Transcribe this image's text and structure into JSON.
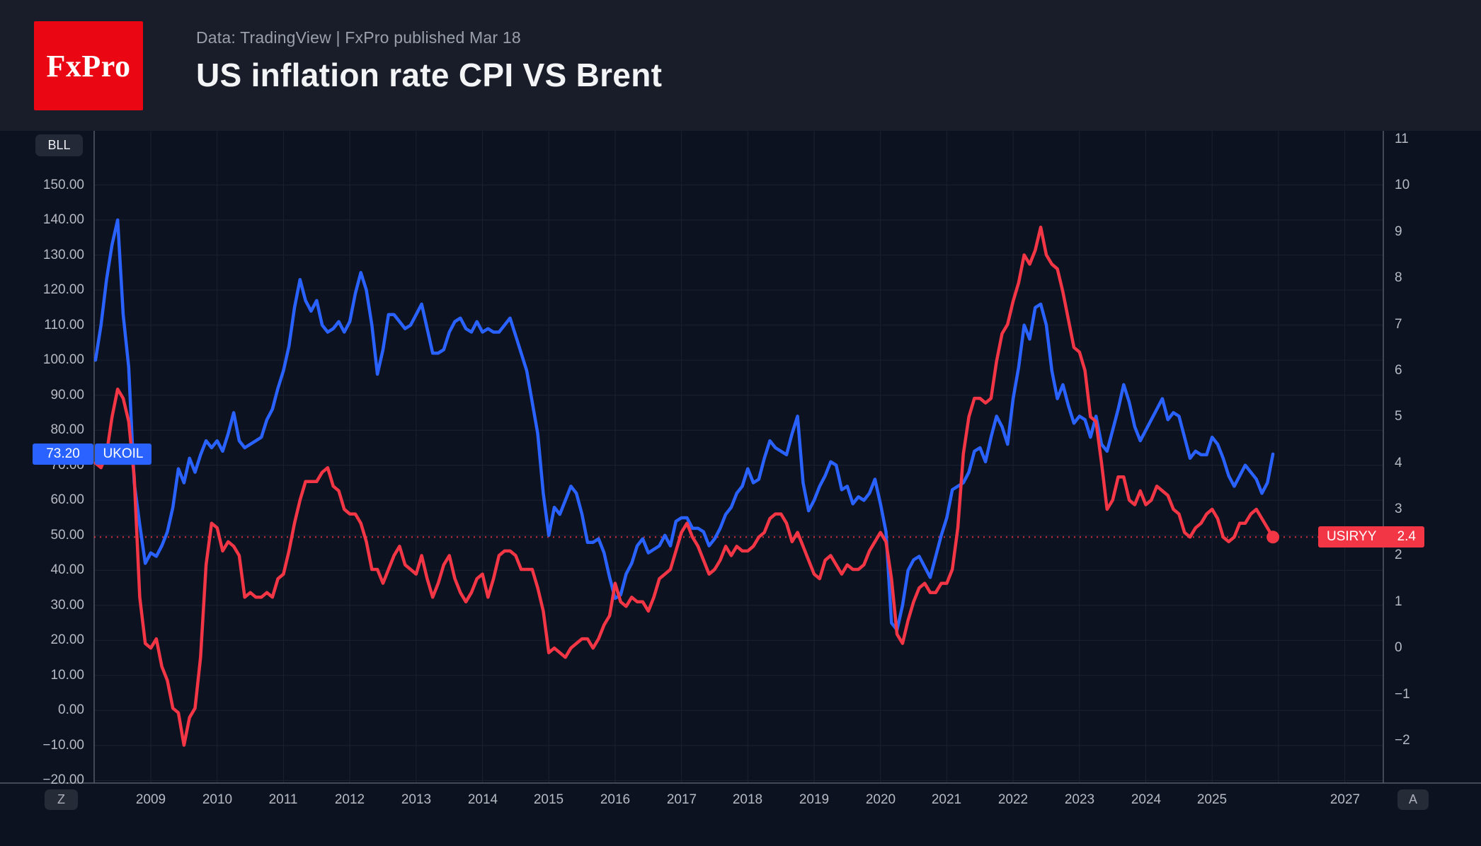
{
  "header": {
    "logo_text": "FxPro",
    "subtitle": "Data: TradingView  |  FxPro published Mar 18",
    "title": "US inflation rate CPI VS Brent"
  },
  "chart": {
    "unit_button": "BLL",
    "bottom_left_button": "Z",
    "bottom_right_button": "A",
    "price_labels": {
      "ukoil_value": "73.20",
      "ukoil_name": "UKOIL",
      "usiryy_name": "USIRYY",
      "usiryy_value": "2.4"
    },
    "colors": {
      "brent_line": "#2962ff",
      "cpi_line": "#f23645",
      "background": "#0d1220",
      "header_background": "#191d29",
      "logo_red": "#ea0612"
    }
  },
  "chart_data": {
    "type": "line",
    "title": "US inflation rate CPI VS Brent",
    "start": {
      "year": 2008,
      "month": 3
    },
    "frequency": "monthly",
    "left_axis": {
      "unit": "BLL",
      "tick_labels": [
        "150.00",
        "140.00",
        "130.00",
        "120.00",
        "110.00",
        "100.00",
        "90.00",
        "80.00",
        "70.00",
        "60.00",
        "50.00",
        "40.00",
        "30.00",
        "20.00",
        "10.00",
        "0.00",
        "−10.00",
        "−20.00"
      ]
    },
    "right_axis": {
      "tick_labels": [
        "11",
        "10",
        "9",
        "8",
        "7",
        "6",
        "5",
        "4",
        "3",
        "2",
        "1",
        "0",
        "−1",
        "−2"
      ]
    },
    "x_axis": {
      "tick_labels": [
        "2009",
        "2010",
        "2011",
        "2012",
        "2013",
        "2014",
        "2015",
        "2016",
        "2017",
        "2018",
        "2019",
        "2020",
        "2021",
        "2022",
        "2023",
        "2024",
        "2025",
        "2027"
      ]
    },
    "series": [
      {
        "name": "UKOIL",
        "label": "Brent crude oil price",
        "axis": "left",
        "color": "#2962ff",
        "last_value": 73.2,
        "monthly_values": [
          100,
          110,
          123,
          133,
          140,
          113,
          98,
          65,
          53,
          42,
          45,
          44,
          47,
          51,
          58,
          69,
          65,
          72,
          68,
          73,
          77,
          75,
          77,
          74,
          79,
          85,
          77,
          75,
          76,
          77,
          78,
          83,
          86,
          92,
          97,
          104,
          115,
          123,
          117,
          114,
          117,
          110,
          108,
          109,
          111,
          108,
          111,
          119,
          125,
          120,
          110,
          96,
          103,
          113,
          113,
          111,
          109,
          110,
          113,
          116,
          109,
          102,
          102,
          103,
          108,
          111,
          112,
          109,
          108,
          111,
          108,
          109,
          108,
          108,
          110,
          112,
          107,
          102,
          97,
          88,
          79,
          62,
          50,
          58,
          56,
          60,
          64,
          62,
          56,
          48,
          48,
          49,
          45,
          38,
          32,
          33,
          39,
          42,
          47,
          49,
          45,
          46,
          47,
          50,
          47,
          54,
          55,
          55,
          52,
          52,
          51,
          47,
          49,
          52,
          56,
          58,
          62,
          64,
          69,
          65,
          66,
          72,
          77,
          75,
          74,
          73,
          79,
          84,
          65,
          57,
          60,
          64,
          67,
          71,
          70,
          63,
          64,
          59,
          61,
          60,
          62,
          66,
          59,
          51,
          25,
          23,
          30,
          40,
          43,
          44,
          41,
          38,
          44,
          50,
          55,
          63,
          64,
          65,
          68,
          74,
          75,
          71,
          78,
          84,
          81,
          76,
          89,
          98,
          110,
          106,
          115,
          116,
          110,
          97,
          89,
          93,
          87,
          82,
          84,
          83,
          78,
          84,
          76,
          74,
          80,
          86,
          93,
          88,
          81,
          77,
          80,
          83,
          86,
          89,
          83,
          85,
          84,
          78,
          72,
          74,
          73,
          73,
          78,
          76,
          72,
          67,
          64,
          67,
          70,
          68,
          66,
          62,
          65,
          73.2
        ]
      },
      {
        "name": "USIRYY",
        "label": "US inflation rate CPI YoY",
        "axis": "right",
        "color": "#f23645",
        "last_value": 2.4,
        "monthly_values": [
          4.0,
          3.9,
          4.2,
          5.0,
          5.6,
          5.4,
          4.9,
          3.7,
          1.1,
          0.1,
          0.0,
          0.2,
          -0.4,
          -0.7,
          -1.3,
          -1.4,
          -2.1,
          -1.5,
          -1.3,
          -0.2,
          1.8,
          2.7,
          2.6,
          2.1,
          2.3,
          2.2,
          2.0,
          1.1,
          1.2,
          1.1,
          1.1,
          1.2,
          1.1,
          1.5,
          1.6,
          2.1,
          2.7,
          3.2,
          3.6,
          3.6,
          3.6,
          3.8,
          3.9,
          3.5,
          3.4,
          3.0,
          2.9,
          2.9,
          2.7,
          2.3,
          1.7,
          1.7,
          1.4,
          1.7,
          2.0,
          2.2,
          1.8,
          1.7,
          1.6,
          2.0,
          1.5,
          1.1,
          1.4,
          1.8,
          2.0,
          1.5,
          1.2,
          1.0,
          1.2,
          1.5,
          1.6,
          1.1,
          1.5,
          2.0,
          2.1,
          2.1,
          2.0,
          1.7,
          1.7,
          1.7,
          1.3,
          0.8,
          -0.1,
          0.0,
          -0.1,
          -0.2,
          0.0,
          0.1,
          0.2,
          0.2,
          0.0,
          0.2,
          0.5,
          0.7,
          1.4,
          1.0,
          0.9,
          1.1,
          1.0,
          1.0,
          0.8,
          1.1,
          1.5,
          1.6,
          1.7,
          2.1,
          2.5,
          2.7,
          2.4,
          2.2,
          1.9,
          1.6,
          1.7,
          1.9,
          2.2,
          2.0,
          2.2,
          2.1,
          2.1,
          2.2,
          2.4,
          2.5,
          2.8,
          2.9,
          2.9,
          2.7,
          2.3,
          2.5,
          2.2,
          1.9,
          1.6,
          1.5,
          1.9,
          2.0,
          1.8,
          1.6,
          1.8,
          1.7,
          1.7,
          1.8,
          2.1,
          2.3,
          2.5,
          2.3,
          1.5,
          0.3,
          0.1,
          0.6,
          1.0,
          1.3,
          1.4,
          1.2,
          1.2,
          1.4,
          1.4,
          1.7,
          2.6,
          4.2,
          5.0,
          5.4,
          5.4,
          5.3,
          5.4,
          6.2,
          6.8,
          7.0,
          7.5,
          7.9,
          8.5,
          8.3,
          8.6,
          9.1,
          8.5,
          8.3,
          8.2,
          7.7,
          7.1,
          6.5,
          6.4,
          6.0,
          5.0,
          4.9,
          4.0,
          3.0,
          3.2,
          3.7,
          3.7,
          3.2,
          3.1,
          3.4,
          3.1,
          3.2,
          3.5,
          3.4,
          3.3,
          3.0,
          2.9,
          2.5,
          2.4,
          2.6,
          2.7,
          2.9,
          3.0,
          2.8,
          2.4,
          2.3,
          2.4,
          2.7,
          2.7,
          2.9,
          3.0,
          2.8,
          2.6,
          2.4
        ]
      }
    ]
  }
}
